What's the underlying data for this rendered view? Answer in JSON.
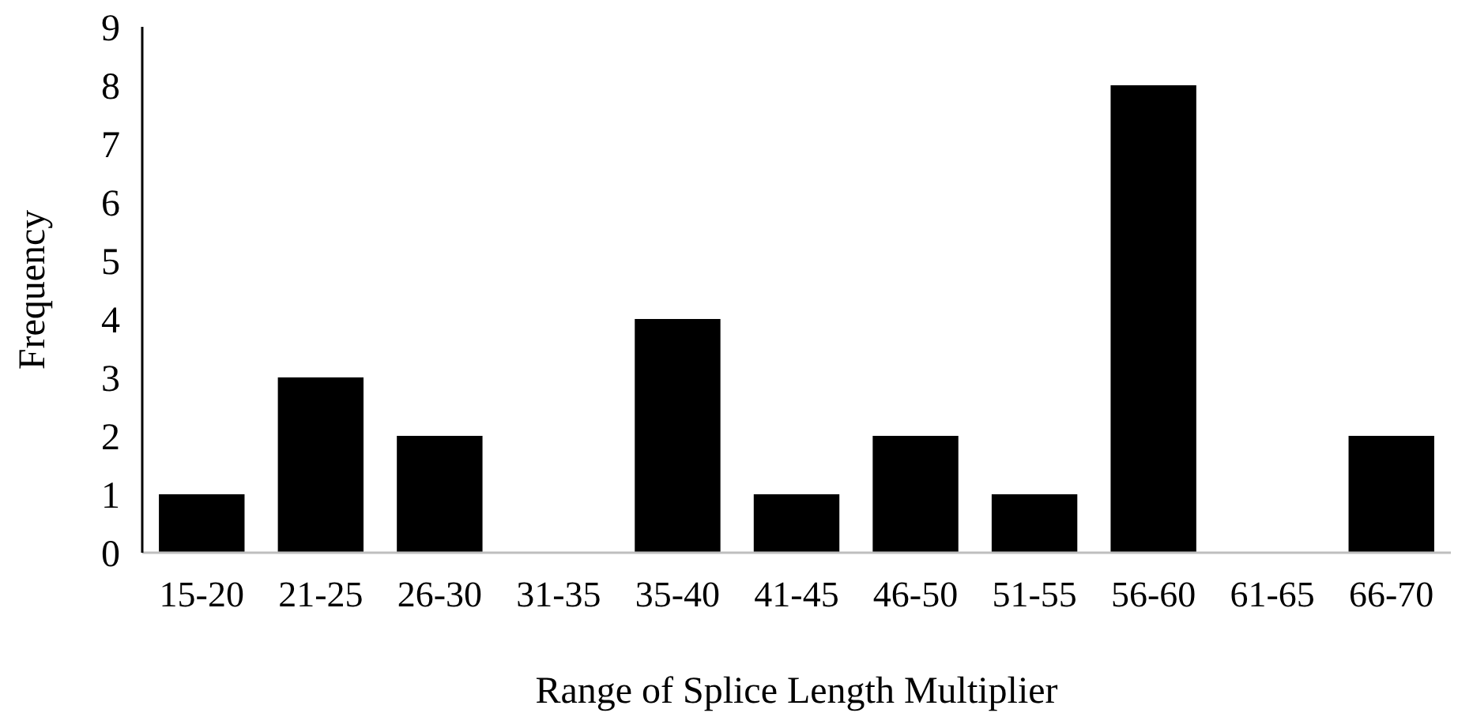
{
  "chart_data": {
    "type": "bar",
    "xlabel": "Range of Splice Length Multiplier",
    "ylabel": "Frequency",
    "categories": [
      "15-20",
      "21-25",
      "26-30",
      "31-35",
      "35-40",
      "41-45",
      "46-50",
      "51-55",
      "56-60",
      "61-65",
      "66-70"
    ],
    "values": [
      1,
      3,
      2,
      0,
      4,
      1,
      2,
      1,
      8,
      0,
      2
    ],
    "color": "#000000",
    "ylim": [
      0,
      9
    ],
    "yticks": [
      0,
      1,
      2,
      3,
      4,
      5,
      6,
      7,
      8,
      9
    ]
  }
}
